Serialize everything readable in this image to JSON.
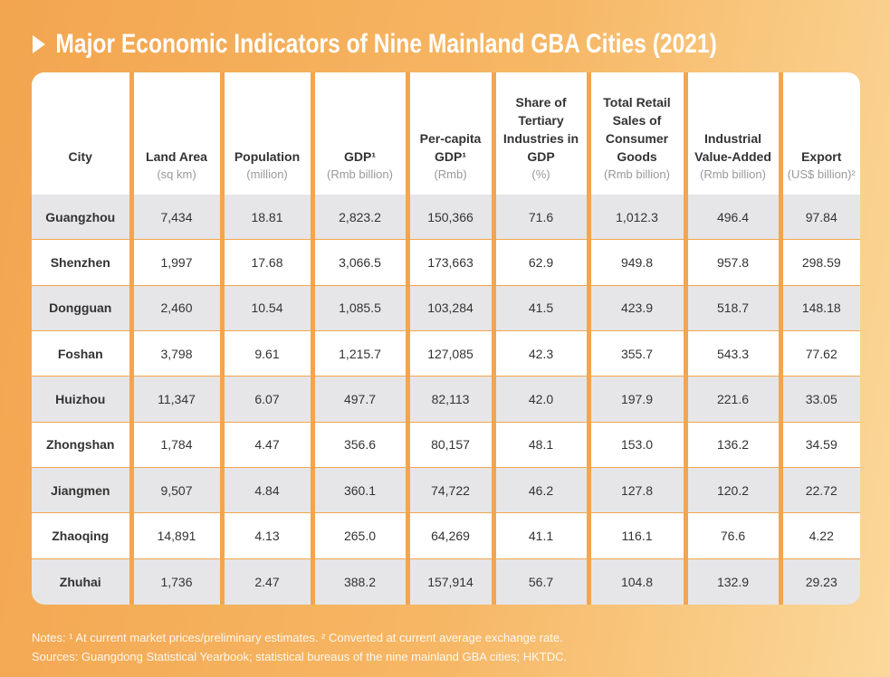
{
  "header": {
    "title": "Major Economic Indicators of Nine Mainland GBA Cities (2021)"
  },
  "table": {
    "columns": [
      {
        "label": "City",
        "unit": null
      },
      {
        "label": "Land Area",
        "unit": "(sq km)"
      },
      {
        "label": "Population",
        "unit": "(million)"
      },
      {
        "label": "GDP¹",
        "unit": "(Rmb billion)"
      },
      {
        "label": "Per-capita GDP¹",
        "unit": "(Rmb)"
      },
      {
        "label": "Share of Tertiary Industries in GDP",
        "unit": "(%)"
      },
      {
        "label": "Total Retail Sales of Consumer Goods",
        "unit": "(Rmb billion)"
      },
      {
        "label": "Industrial Value-Added",
        "unit": "(Rmb billion)"
      },
      {
        "label": "Export",
        "unit": "(US$ billion)²"
      }
    ],
    "rows": [
      [
        "Guangzhou",
        "7,434",
        "18.81",
        "2,823.2",
        "150,366",
        "71.6",
        "1,012.3",
        "496.4",
        "97.84"
      ],
      [
        "Shenzhen",
        "1,997",
        "17.68",
        "3,066.5",
        "173,663",
        "62.9",
        "949.8",
        "957.8",
        "298.59"
      ],
      [
        "Dongguan",
        "2,460",
        "10.54",
        "1,085.5",
        "103,284",
        "41.5",
        "423.9",
        "518.7",
        "148.18"
      ],
      [
        "Foshan",
        "3,798",
        "9.61",
        "1,215.7",
        "127,085",
        "42.3",
        "355.7",
        "543.3",
        "77.62"
      ],
      [
        "Huizhou",
        "11,347",
        "6.07",
        "497.7",
        "82,113",
        "42.0",
        "197.9",
        "221.6",
        "33.05"
      ],
      [
        "Zhongshan",
        "1,784",
        "4.47",
        "356.6",
        "80,157",
        "48.1",
        "153.0",
        "136.2",
        "34.59"
      ],
      [
        "Jiangmen",
        "9,507",
        "4.84",
        "360.1",
        "74,722",
        "46.2",
        "127.8",
        "120.2",
        "22.72"
      ],
      [
        "Zhaoqing",
        "14,891",
        "4.13",
        "265.0",
        "64,269",
        "41.1",
        "116.1",
        "76.6",
        "4.22"
      ],
      [
        "Zhuhai",
        "1,736",
        "2.47",
        "388.2",
        "157,914",
        "56.7",
        "104.8",
        "132.9",
        "29.23"
      ]
    ]
  },
  "footer": {
    "notes": "Notes: ¹ At current market prices/preliminary estimates. ² Converted at current average exchange rate.",
    "sources": "Sources: Guangdong Statistical Yearbook; statistical bureaus of the nine mainland GBA cities; HKTDC."
  }
}
